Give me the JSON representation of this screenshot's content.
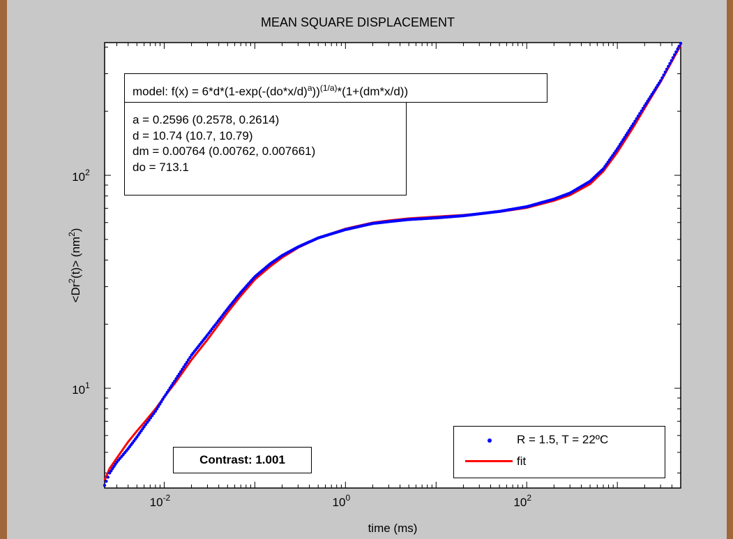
{
  "chart_data": {
    "type": "scatter",
    "title": "MEAN SQUARE DISPLACEMENT",
    "xlabel": "time (ms)",
    "ylabel": "<Dr²(t)> (nm²)",
    "x_scale": "log",
    "y_scale": "log",
    "xlim": [
      0.0022,
      5000
    ],
    "ylim": [
      3.4,
      420
    ],
    "x_ticks": [
      {
        "value": 0.01,
        "base": "10",
        "exp": "-2"
      },
      {
        "value": 1,
        "base": "10",
        "exp": "0"
      },
      {
        "value": 100,
        "base": "10",
        "exp": "2"
      }
    ],
    "y_ticks": [
      {
        "value": 10,
        "base": "10",
        "exp": "1"
      },
      {
        "value": 100,
        "base": "10",
        "exp": "2"
      }
    ],
    "grid": false,
    "legend_position": "bottom-right",
    "series": [
      {
        "name": "R = 1.5, T = 22ºC",
        "style": "dots",
        "color": "#0000ff",
        "x": [
          0.0022,
          0.0025,
          0.003,
          0.004,
          0.005,
          0.006,
          0.008,
          0.01,
          0.013,
          0.02,
          0.03,
          0.05,
          0.07,
          0.1,
          0.15,
          0.2,
          0.3,
          0.5,
          0.7,
          1,
          2,
          3,
          5,
          10,
          20,
          50,
          100,
          200,
          300,
          500,
          700,
          1000,
          1500,
          2000,
          3000,
          5000
        ],
        "y": [
          3.5,
          4.0,
          4.5,
          5.2,
          5.9,
          6.6,
          7.8,
          9.1,
          10.8,
          14.3,
          17.8,
          23.6,
          28.2,
          33.4,
          38.6,
          42.0,
          46.1,
          50.8,
          53.1,
          55.6,
          59.4,
          60.6,
          62.0,
          63.1,
          64.6,
          67.7,
          71.2,
          77.3,
          82.5,
          93.7,
          107.3,
          133.2,
          174.5,
          212.0,
          278.1,
          416.8
        ]
      },
      {
        "name": "fit",
        "style": "line",
        "color": "#ff0000",
        "x": [
          0.0022,
          0.0025,
          0.003,
          0.004,
          0.005,
          0.006,
          0.008,
          0.01,
          0.013,
          0.02,
          0.03,
          0.05,
          0.07,
          0.1,
          0.15,
          0.2,
          0.3,
          0.5,
          0.7,
          1,
          2,
          3,
          5,
          10,
          20,
          50,
          100,
          200,
          300,
          500,
          700,
          1000,
          1500,
          2000,
          3000,
          5000
        ],
        "y": [
          3.7,
          4.2,
          4.7,
          5.6,
          6.3,
          6.9,
          8.0,
          9.1,
          10.5,
          13.6,
          16.9,
          22.7,
          27.2,
          32.4,
          37.5,
          41.1,
          45.7,
          50.7,
          53.3,
          56.1,
          60.0,
          61.3,
          62.7,
          63.9,
          65.1,
          67.4,
          70.4,
          76.0,
          80.7,
          91.0,
          104.3,
          128.4,
          168.2,
          206.6,
          274.8,
          408.0
        ]
      }
    ]
  },
  "annotations": {
    "model_prefix": "model: f(x) = 6*d*(1-exp(-(do*x/d)",
    "model_sup_a": "a",
    "model_mid": "))",
    "model_sup_inv": "(1/a)",
    "model_suffix": "*(1+(dm*x/d))",
    "params": [
      "a = 0.2596  (0.2578, 0.2614)",
      "d = 10.74  (10.7, 10.79)",
      "dm = 0.00764 (0.00762, 0.007661)",
      "do = 713.1"
    ],
    "contrast": "Contrast: 1.001"
  }
}
